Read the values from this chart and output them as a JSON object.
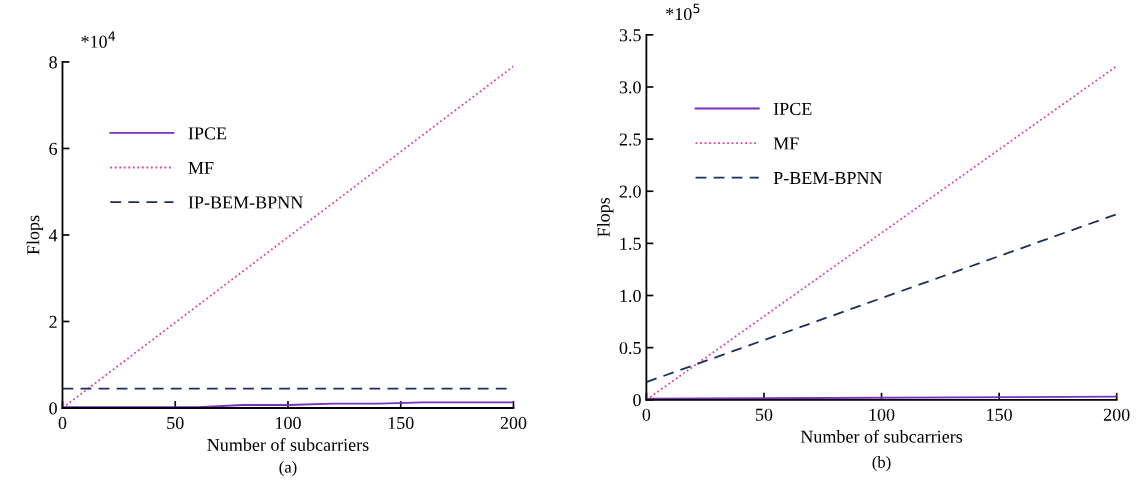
{
  "chart_data": [
    {
      "type": "line",
      "xlabel": "Number of subcarriers",
      "ylabel": "Flops",
      "annotations": [
        "*10$^{4}$",
        "(a)"
      ],
      "xlim": [
        0,
        200
      ],
      "xticks": [
        0,
        50,
        100,
        150,
        200
      ],
      "ylim": [
        0,
        8
      ],
      "yticks": [
        0,
        2,
        4,
        6,
        8
      ],
      "grid": false,
      "legend": "top left",
      "series": [
        {
          "name": "IPCE",
          "color": "#7b2fbe",
          "line_style": "solid",
          "x": [
            0,
            20,
            40,
            60,
            80,
            100,
            120,
            140,
            160,
            180,
            200
          ],
          "values": [
            0.02,
            0.02,
            0.02,
            0.02,
            0.07,
            0.07,
            0.1,
            0.1,
            0.13,
            0.13,
            0.13
          ]
        },
        {
          "name": "MF",
          "color": "#e040a8",
          "line_style": "dotted",
          "x": [
            0,
            200
          ],
          "values": [
            0,
            7.9
          ]
        },
        {
          "name": "IP-BEM-BPNN",
          "color": "#1f2f5c",
          "line_style": "dashed",
          "x": [
            0,
            200
          ],
          "values": [
            0.45,
            0.45
          ]
        }
      ]
    },
    {
      "type": "line",
      "xlabel": "Number of subcarriers",
      "ylabel": "Flops",
      "annotations": [
        "*10$^{5}$",
        "(b)"
      ],
      "xlim": [
        0,
        200
      ],
      "xticks": [
        0,
        50,
        100,
        150,
        200
      ],
      "ylim": [
        0,
        3.5
      ],
      "yticks": [
        0,
        0.5,
        {
          "value": 1,
          "label": "1.0"
        },
        1.5,
        {
          "value": 2,
          "label": "2.0"
        },
        2.5,
        {
          "value": 3,
          "label": "3.0"
        },
        3.5
      ],
      "grid": false,
      "legend": "top left",
      "series": [
        {
          "name": "IPCE",
          "color": "#7b2fbe",
          "line_style": "solid",
          "x": [
            0,
            200
          ],
          "values": [
            0.01,
            0.03
          ]
        },
        {
          "name": "MF",
          "color": "#e040a8",
          "line_style": "dotted",
          "x": [
            0,
            200
          ],
          "values": [
            0,
            3.2
          ]
        },
        {
          "name": "P-BEM-BPNN",
          "color": "#1f2f5c",
          "line_style": "dashed",
          "x": [
            0,
            200
          ],
          "values": [
            0.17,
            1.78
          ]
        }
      ]
    }
  ]
}
